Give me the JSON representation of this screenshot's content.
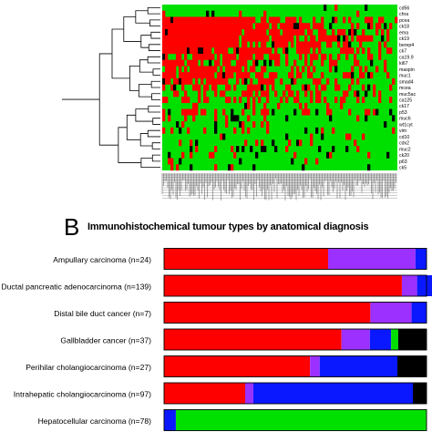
{
  "panel_b": {
    "letter": "B",
    "title": "Immunohistochemical tumour types by anatomical diagnosis"
  },
  "colors": {
    "red": "#ff0000",
    "green": "#00e000",
    "purple": "#9b30ff",
    "blue": "#0a18ff",
    "black": "#000000",
    "heat_high": "#ff0000",
    "heat_low": "#00e000"
  },
  "chart_data": [
    {
      "type": "heatmap",
      "title": "",
      "rows": [
        "cd56",
        "chra",
        "pcea",
        "ck18",
        "ema",
        "ck19",
        "berep4",
        "ck7",
        "ca19.9",
        "ki67",
        "maspin",
        "muc1",
        "smad4",
        "mcea",
        "muc5ac",
        "ca125",
        "ck17",
        "p53",
        "muc6",
        "wt1cyt",
        "vim",
        "cd10",
        "cdx2",
        "muc2",
        "ck20",
        "p63",
        "ck5"
      ],
      "row_high_fraction": [
        0.02,
        0.05,
        0.88,
        0.92,
        0.9,
        0.93,
        0.88,
        0.8,
        0.62,
        0.45,
        0.6,
        0.65,
        0.55,
        0.45,
        0.35,
        0.4,
        0.25,
        0.3,
        0.12,
        0.08,
        0.1,
        0.1,
        0.12,
        0.1,
        0.08,
        0.06,
        0.04
      ],
      "legend": [],
      "dendrogram": "hierarchical clustering of markers (left)"
    },
    {
      "type": "bar",
      "stacked": true,
      "orientation": "horizontal",
      "title": "Immunohistochemical tumour types by anatomical diagnosis",
      "xlabel": "",
      "ylabel": "",
      "xlim": [
        0,
        1
      ],
      "categories": [
        "Ampullary carcinoma (n=24)",
        "Ductal pancreatic adenocarcinoma (n=139)",
        "Distal bile duct cancer (n=7)",
        "Gallbladder cancer (n=37)",
        "Perihilar cholangiocarcinoma (n=27)",
        "Intrahepatic cholangiocarcinoma (n=97)",
        "Hepatocellular carcinoma (n=78)"
      ],
      "segment_colors": [
        "red",
        "purple",
        "blue",
        "green",
        "black"
      ],
      "rows": [
        [
          0.625,
          0.333,
          0.042,
          0,
          0.0
        ],
        [
          0.906,
          0.058,
          0.072,
          0,
          0.0
        ],
        [
          0.786,
          0.157,
          0.057,
          0,
          0.0
        ],
        [
          0.676,
          0.108,
          0.081,
          0.027,
          0.108
        ],
        [
          0.556,
          0.037,
          0.296,
          0,
          0.111
        ],
        [
          0.309,
          0.031,
          0.608,
          0,
          0.052
        ],
        [
          0.0,
          0.0,
          0.045,
          0.955,
          0.0
        ]
      ],
      "legend": []
    }
  ]
}
